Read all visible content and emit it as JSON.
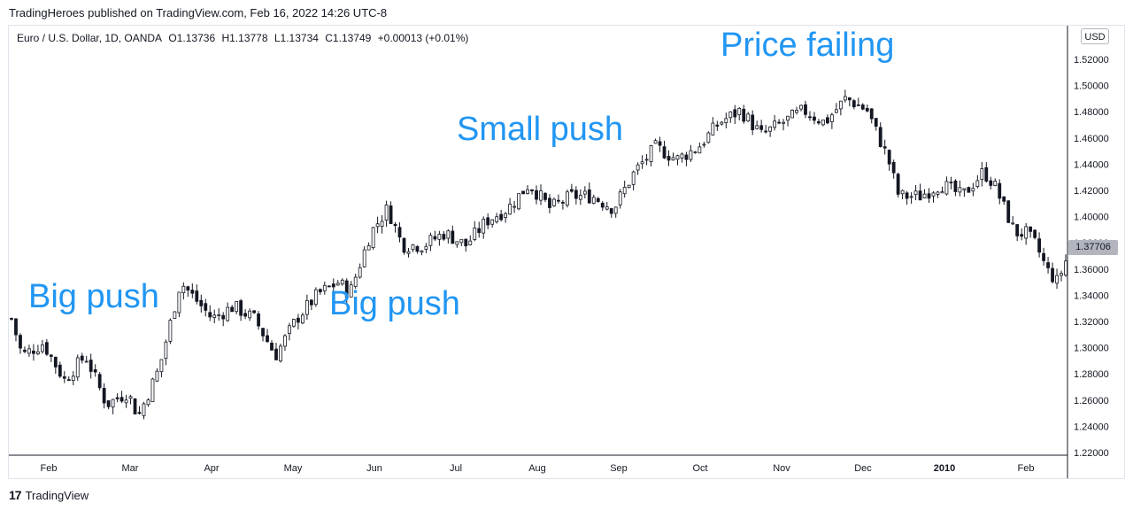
{
  "header": {
    "published": "TradingHeroes published on TradingView.com, Feb 16, 2022 14:26 UTC-8"
  },
  "legend": {
    "symbol": "Euro / U.S. Dollar, 1D, OANDA",
    "open": "O1.13736",
    "high": "H1.13778",
    "low": "L1.13734",
    "close": "C1.13749",
    "change": "+0.00013 (+0.01%)"
  },
  "currency_button": "USD",
  "last_price": "1.37706",
  "annotations": {
    "big_push_1": "Big push",
    "big_push_2": "Big push",
    "small_push": "Small push",
    "price_failing": "Price failing"
  },
  "footer": {
    "logo_mark": "17",
    "brand": "TradingView"
  },
  "colors": {
    "candle": "#131722",
    "annotation": "#2196f3",
    "grid": "#e0e3eb"
  },
  "chart_data": {
    "type": "candlestick",
    "ylim": [
      1.22,
      1.53
    ],
    "y_ticks": [
      "1.22000",
      "1.24000",
      "1.26000",
      "1.28000",
      "1.30000",
      "1.32000",
      "1.34000",
      "1.36000",
      "1.38000",
      "1.40000",
      "1.42000",
      "1.44000",
      "1.46000",
      "1.48000",
      "1.50000",
      "1.52000"
    ],
    "x_ticks": [
      "Feb",
      "Mar",
      "Apr",
      "May",
      "Jun",
      "Jul",
      "Aug",
      "Sep",
      "Oct",
      "Nov",
      "Dec",
      "2010",
      "Feb"
    ],
    "grid": false,
    "close_path": [
      [
        0,
        1.33
      ],
      [
        5,
        1.3
      ],
      [
        15,
        1.31
      ],
      [
        25,
        1.28
      ],
      [
        35,
        1.3
      ],
      [
        45,
        1.26
      ],
      [
        55,
        1.27
      ],
      [
        60,
        1.25
      ],
      [
        65,
        1.27
      ],
      [
        70,
        1.29
      ],
      [
        80,
        1.36
      ],
      [
        85,
        1.35
      ],
      [
        95,
        1.33
      ],
      [
        105,
        1.34
      ],
      [
        115,
        1.33
      ],
      [
        125,
        1.3
      ],
      [
        135,
        1.33
      ],
      [
        145,
        1.35
      ],
      [
        155,
        1.36
      ],
      [
        160,
        1.35
      ],
      [
        170,
        1.4
      ],
      [
        178,
        1.42
      ],
      [
        185,
        1.39
      ],
      [
        195,
        1.39
      ],
      [
        205,
        1.4
      ],
      [
        215,
        1.39
      ],
      [
        225,
        1.41
      ],
      [
        235,
        1.42
      ],
      [
        245,
        1.44
      ],
      [
        255,
        1.42
      ],
      [
        265,
        1.43
      ],
      [
        275,
        1.43
      ],
      [
        285,
        1.42
      ],
      [
        295,
        1.45
      ],
      [
        305,
        1.47
      ],
      [
        315,
        1.46
      ],
      [
        325,
        1.47
      ],
      [
        335,
        1.49
      ],
      [
        345,
        1.5
      ],
      [
        355,
        1.48
      ],
      [
        365,
        1.49
      ],
      [
        375,
        1.5
      ],
      [
        385,
        1.49
      ],
      [
        395,
        1.51
      ],
      [
        405,
        1.5
      ],
      [
        410,
        1.48
      ],
      [
        415,
        1.46
      ],
      [
        420,
        1.43
      ],
      [
        430,
        1.43
      ],
      [
        440,
        1.44
      ],
      [
        450,
        1.43
      ],
      [
        455,
        1.44
      ],
      [
        460,
        1.45
      ],
      [
        465,
        1.44
      ],
      [
        470,
        1.42
      ],
      [
        475,
        1.4
      ],
      [
        480,
        1.4
      ],
      [
        485,
        1.39
      ],
      [
        490,
        1.37
      ],
      [
        495,
        1.36
      ],
      [
        499,
        1.37706
      ]
    ]
  }
}
